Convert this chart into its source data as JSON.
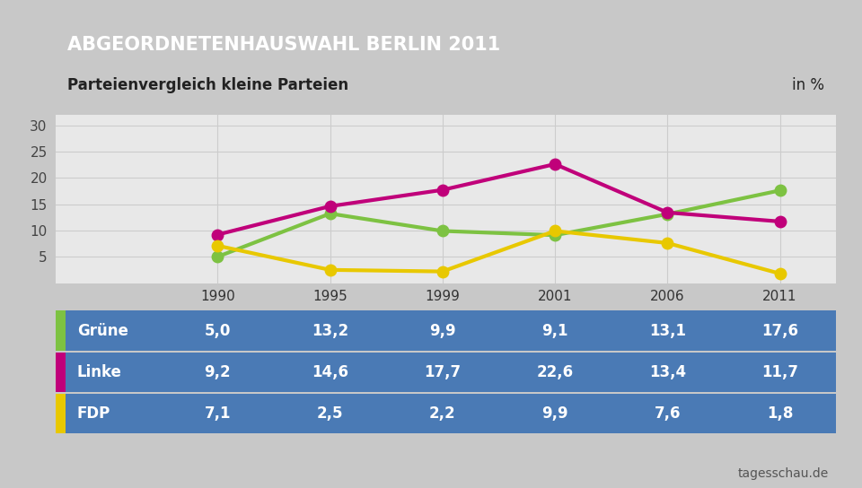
{
  "title": "ABGEORDNETENHAUSWAHL BERLIN 2011",
  "subtitle": "Parteienvergleich kleine Parteien",
  "subtitle_right": "in %",
  "source": "tagesschau.de",
  "years": [
    1990,
    1995,
    1999,
    2001,
    2006,
    2011
  ],
  "series": [
    {
      "name": "Grüne",
      "values": [
        5.0,
        13.2,
        9.9,
        9.1,
        13.1,
        17.6
      ],
      "color": "#7dc242"
    },
    {
      "name": "Linke",
      "values": [
        9.2,
        14.6,
        17.7,
        22.6,
        13.4,
        11.7
      ],
      "color": "#c0007a"
    },
    {
      "name": "FDP",
      "values": [
        7.1,
        2.5,
        2.2,
        9.9,
        7.6,
        1.8
      ],
      "color": "#e8c800"
    }
  ],
  "yticks": [
    5,
    10,
    15,
    20,
    25,
    30
  ],
  "ylim": [
    0,
    32
  ],
  "header_bg": "#1a3a6b",
  "header_text_color": "#ffffff",
  "subheader_bg": "#f0f0f0",
  "subheader_text_color": "#222222",
  "table_bg": "#4a7ab5",
  "table_text_color": "#ffffff",
  "outer_bg": "#c8c8c8",
  "chart_bg": "#e0e0e0",
  "plot_bg": "#e8e8e8",
  "grid_color": "#cccccc",
  "line_width": 3.0,
  "marker_size": 9,
  "year_header_bg": "#f5f5f5",
  "year_text_color": "#333333",
  "swatch_colors": [
    "#7dc242",
    "#c0007a",
    "#e8c800"
  ]
}
